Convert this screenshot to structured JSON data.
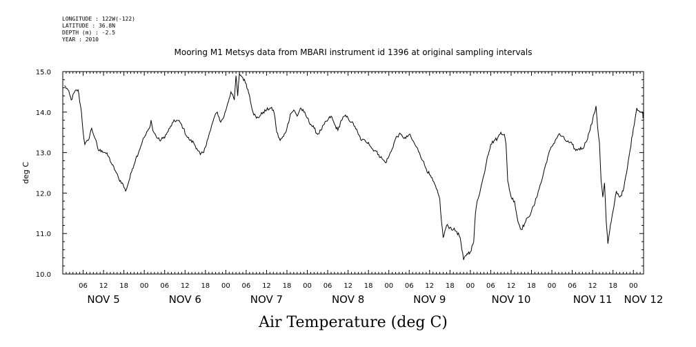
{
  "header": {
    "meta_lines": [
      "LONGITUDE : 122W(-122)",
      "LATITUDE : 36.8N",
      "DEPTH (m) : -2.5",
      "YEAR : 2010"
    ],
    "title": "Mooring M1 Metsys data from MBARI instrument id 1396 at original sampling intervals"
  },
  "chart_data": {
    "type": "line",
    "title": "Mooring M1 Metsys data from MBARI instrument id 1396 at original sampling intervals",
    "xlabel": "Air Temperature (deg C)",
    "ylabel": "deg C",
    "ylim": [
      10.0,
      15.0
    ],
    "yticks": [
      "10.0",
      "11.0",
      "12.0",
      "13.0",
      "14.0",
      "15.0"
    ],
    "xlim_hours": [
      0,
      171
    ],
    "hour_ticks": [
      "06",
      "12",
      "18",
      "00",
      "06",
      "12",
      "18",
      "00",
      "06",
      "12",
      "18",
      "00",
      "06",
      "12",
      "18",
      "00",
      "06",
      "12",
      "18",
      "00",
      "06",
      "12",
      "18",
      "00",
      "06",
      "12",
      "18",
      "00"
    ],
    "day_labels": [
      "NOV  5",
      "NOV  6",
      "NOV  7",
      "NOV  8",
      "NOV  9",
      "NOV 10",
      "NOV 11",
      "NOV 12"
    ],
    "grid": false,
    "series": [
      {
        "values": [
          [
            0.5,
            14.65
          ],
          [
            1.5,
            14.55
          ],
          [
            2.5,
            14.3
          ],
          [
            3.5,
            14.5
          ],
          [
            4.5,
            14.55
          ],
          [
            5.5,
            14.0
          ],
          [
            6.0,
            13.5
          ],
          [
            6.5,
            13.2
          ],
          [
            7.5,
            13.3
          ],
          [
            8.5,
            13.6
          ],
          [
            9.5,
            13.35
          ],
          [
            10.5,
            13.05
          ],
          [
            11.5,
            13.05
          ],
          [
            12.5,
            13.0
          ],
          [
            13.5,
            12.9
          ],
          [
            14.5,
            12.7
          ],
          [
            15.5,
            12.55
          ],
          [
            16.5,
            12.35
          ],
          [
            17.5,
            12.25
          ],
          [
            18.5,
            12.05
          ],
          [
            19.5,
            12.3
          ],
          [
            20.5,
            12.6
          ],
          [
            21.5,
            12.85
          ],
          [
            22.5,
            13.05
          ],
          [
            23.5,
            13.3
          ],
          [
            24.5,
            13.45
          ],
          [
            25.5,
            13.6
          ],
          [
            26.0,
            13.8
          ],
          [
            26.5,
            13.55
          ],
          [
            27.5,
            13.4
          ],
          [
            28.5,
            13.3
          ],
          [
            29.5,
            13.35
          ],
          [
            30.5,
            13.45
          ],
          [
            31.5,
            13.6
          ],
          [
            32.5,
            13.75
          ],
          [
            33.5,
            13.8
          ],
          [
            34.5,
            13.75
          ],
          [
            35.5,
            13.6
          ],
          [
            36.5,
            13.4
          ],
          [
            37.5,
            13.3
          ],
          [
            38.5,
            13.25
          ],
          [
            39.5,
            13.1
          ],
          [
            40.5,
            12.95
          ],
          [
            41.5,
            13.0
          ],
          [
            42.5,
            13.3
          ],
          [
            43.5,
            13.55
          ],
          [
            44.5,
            13.85
          ],
          [
            45.5,
            14.0
          ],
          [
            46.5,
            13.75
          ],
          [
            47.5,
            13.9
          ],
          [
            48.5,
            14.2
          ],
          [
            49.5,
            14.5
          ],
          [
            50.5,
            14.3
          ],
          [
            51.0,
            14.9
          ],
          [
            51.5,
            14.4
          ],
          [
            52.0,
            14.95
          ],
          [
            53.0,
            14.85
          ],
          [
            54.0,
            14.7
          ],
          [
            55.0,
            14.4
          ],
          [
            56.0,
            14.0
          ],
          [
            57.0,
            13.85
          ],
          [
            58.0,
            13.9
          ],
          [
            59.0,
            14.0
          ],
          [
            60.0,
            14.05
          ],
          [
            61.0,
            14.1
          ],
          [
            62.0,
            14.05
          ],
          [
            62.5,
            13.85
          ],
          [
            63.0,
            13.5
          ],
          [
            64.0,
            13.3
          ],
          [
            65.0,
            13.4
          ],
          [
            66.0,
            13.6
          ],
          [
            67.0,
            13.95
          ],
          [
            68.0,
            14.05
          ],
          [
            69.0,
            13.9
          ],
          [
            70.0,
            14.1
          ],
          [
            71.0,
            14.0
          ],
          [
            72.0,
            13.85
          ],
          [
            73.0,
            13.7
          ],
          [
            74.0,
            13.6
          ],
          [
            75.0,
            13.45
          ],
          [
            76.0,
            13.55
          ],
          [
            77.0,
            13.7
          ],
          [
            78.0,
            13.8
          ],
          [
            79.0,
            13.9
          ],
          [
            80.0,
            13.7
          ],
          [
            81.0,
            13.55
          ],
          [
            82.0,
            13.8
          ],
          [
            83.0,
            13.9
          ],
          [
            84.0,
            13.85
          ],
          [
            85.0,
            13.75
          ],
          [
            86.0,
            13.65
          ],
          [
            87.0,
            13.45
          ],
          [
            88.0,
            13.3
          ],
          [
            89.0,
            13.3
          ],
          [
            90.0,
            13.25
          ],
          [
            91.0,
            13.1
          ],
          [
            92.0,
            13.05
          ],
          [
            93.0,
            12.95
          ],
          [
            94.0,
            12.85
          ],
          [
            95.0,
            12.75
          ],
          [
            96.0,
            12.9
          ],
          [
            97.0,
            13.1
          ],
          [
            98.0,
            13.35
          ],
          [
            99.0,
            13.45
          ],
          [
            100.0,
            13.4
          ],
          [
            101.0,
            13.35
          ],
          [
            102.0,
            13.45
          ],
          [
            103.0,
            13.3
          ],
          [
            104.0,
            13.15
          ],
          [
            105.0,
            13.0
          ],
          [
            106.0,
            12.8
          ],
          [
            107.0,
            12.6
          ],
          [
            108.0,
            12.45
          ],
          [
            109.0,
            12.3
          ],
          [
            110.0,
            12.1
          ],
          [
            111.0,
            11.85
          ],
          [
            111.5,
            11.3
          ],
          [
            112.0,
            10.9
          ],
          [
            113.0,
            11.2
          ],
          [
            114.0,
            11.15
          ],
          [
            115.0,
            11.1
          ],
          [
            116.0,
            11.05
          ],
          [
            117.0,
            10.9
          ],
          [
            117.5,
            10.6
          ],
          [
            118.0,
            10.35
          ],
          [
            119.0,
            10.5
          ],
          [
            120.0,
            10.55
          ],
          [
            121.0,
            10.8
          ],
          [
            121.5,
            11.5
          ],
          [
            122.0,
            11.8
          ],
          [
            123.0,
            12.1
          ],
          [
            124.0,
            12.45
          ],
          [
            125.0,
            12.9
          ],
          [
            126.0,
            13.2
          ],
          [
            127.0,
            13.3
          ],
          [
            128.0,
            13.35
          ],
          [
            129.0,
            13.5
          ],
          [
            130.0,
            13.45
          ],
          [
            130.5,
            13.2
          ],
          [
            131.0,
            12.3
          ],
          [
            132.0,
            11.9
          ],
          [
            133.0,
            11.8
          ],
          [
            134.0,
            11.3
          ],
          [
            135.0,
            11.1
          ],
          [
            136.0,
            11.25
          ],
          [
            137.0,
            11.4
          ],
          [
            138.0,
            11.55
          ],
          [
            139.0,
            11.75
          ],
          [
            140.0,
            12.05
          ],
          [
            141.0,
            12.3
          ],
          [
            142.0,
            12.65
          ],
          [
            143.0,
            12.95
          ],
          [
            144.0,
            13.15
          ],
          [
            145.0,
            13.3
          ],
          [
            146.0,
            13.45
          ],
          [
            147.0,
            13.4
          ],
          [
            148.0,
            13.3
          ],
          [
            149.0,
            13.25
          ],
          [
            150.0,
            13.2
          ],
          [
            151.0,
            13.05
          ],
          [
            152.0,
            13.1
          ],
          [
            153.0,
            13.1
          ],
          [
            154.0,
            13.25
          ],
          [
            155.0,
            13.5
          ],
          [
            156.0,
            13.8
          ],
          [
            157.0,
            14.15
          ],
          [
            157.5,
            13.6
          ],
          [
            158.0,
            13.25
          ],
          [
            158.5,
            12.3
          ],
          [
            159.0,
            11.9
          ],
          [
            159.5,
            12.25
          ],
          [
            160.0,
            11.3
          ],
          [
            160.5,
            10.75
          ],
          [
            161.0,
            11.05
          ],
          [
            161.5,
            11.3
          ],
          [
            162.0,
            11.55
          ],
          [
            162.5,
            11.8
          ],
          [
            163.0,
            12.05
          ],
          [
            164.0,
            11.9
          ],
          [
            165.0,
            12.05
          ],
          [
            166.0,
            12.5
          ],
          [
            167.0,
            13.05
          ],
          [
            168.0,
            13.6
          ],
          [
            169.0,
            14.1
          ],
          [
            170.0,
            14.0
          ],
          [
            171.0,
            13.95
          ],
          [
            172.0,
            14.0
          ],
          [
            173.0,
            13.85
          ]
        ]
      }
    ]
  }
}
